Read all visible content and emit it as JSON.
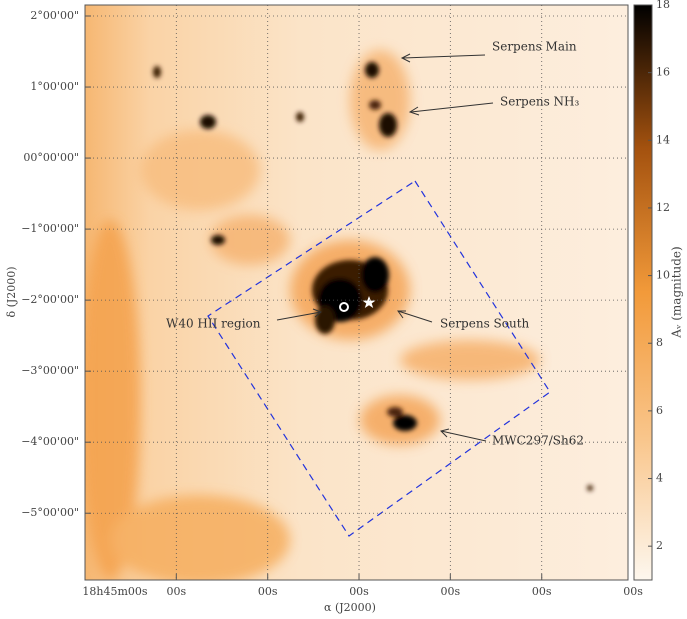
{
  "chart_data": {
    "type": "image",
    "xlabel": "α (J2000)",
    "ylabel": "δ (J2000)",
    "xlim": [
      18.75,
      18.2546
    ],
    "xticks": [
      {
        "value": 18.75,
        "label": "18h45m00s"
      },
      {
        "value": 18.6667,
        "label": "00s"
      },
      {
        "value": 18.5833,
        "label": "00s"
      },
      {
        "value": 18.5,
        "label": "00s"
      },
      {
        "value": 18.4167,
        "label": "00s"
      },
      {
        "value": 18.3333,
        "label": "00s"
      },
      {
        "value": 18.25,
        "label": "00s"
      }
    ],
    "ylim": [
      -5.94,
      2.155
    ],
    "yticks": [
      {
        "value": 2,
        "label": "2°00'00\""
      },
      {
        "value": 1,
        "label": "1°00'00\""
      },
      {
        "value": 0,
        "label": "00°00'00\""
      },
      {
        "value": -1,
        "label": "−1°00'00\""
      },
      {
        "value": -2,
        "label": "−2°00'00\""
      },
      {
        "value": -3,
        "label": "−3°00'00\""
      },
      {
        "value": -4,
        "label": "−4°00'00\""
      },
      {
        "value": -5,
        "label": "−5°00'00\""
      }
    ],
    "grid": true,
    "colorbar": {
      "label": "Aᵥ (magnitude)",
      "lim": [
        1,
        18
      ],
      "ticks": [
        2,
        4,
        6,
        8,
        10,
        12,
        14,
        16,
        18
      ],
      "colormap": [
        "#fdf7ee",
        "#f9c58a",
        "#f29a3a",
        "#a4520f",
        "#000000"
      ]
    },
    "annotations": [
      "Serpens Main",
      "Serpens NH₃",
      "W40 HII region",
      "Serpens South",
      "MWC297/Sh62"
    ]
  }
}
